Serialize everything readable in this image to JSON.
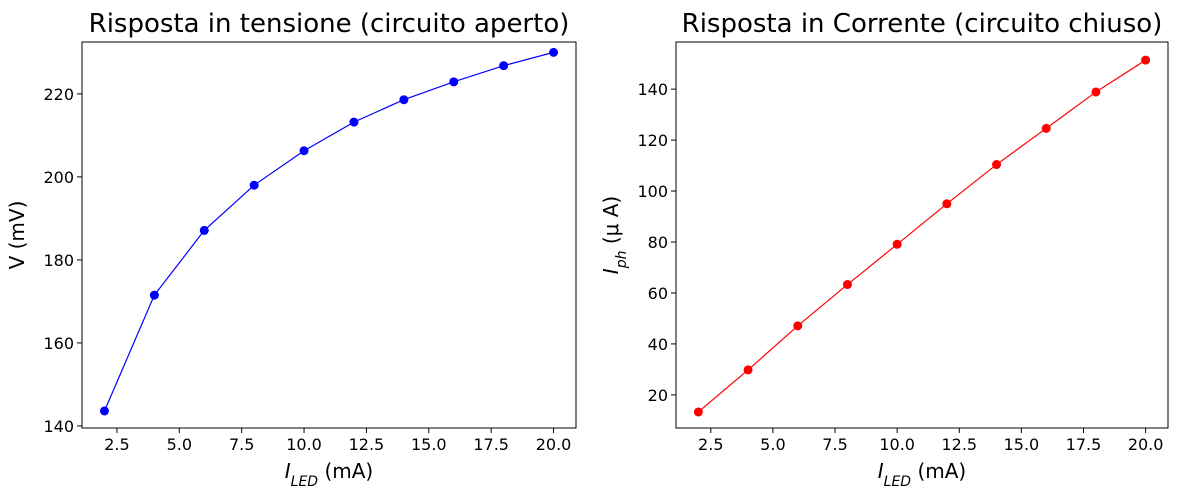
{
  "chart_data": [
    {
      "type": "line",
      "title": "Risposta in tensione (circuito aperto)",
      "xlabel": {
        "base": "I",
        "sub": "LED",
        "unit": " (mA)"
      },
      "ylabel": {
        "base": "V (mV)"
      },
      "xlim": [
        1.1,
        20.9
      ],
      "ylim": [
        139.5,
        232.5
      ],
      "xticks": [
        2.5,
        5.0,
        7.5,
        10.0,
        12.5,
        15.0,
        17.5,
        20.0
      ],
      "yticks": [
        140,
        160,
        180,
        200,
        220
      ],
      "grid": false,
      "series": [
        {
          "color": "#0000ff",
          "marker": "circle",
          "x": [
            2,
            4,
            6,
            8,
            10,
            12,
            14,
            16,
            18,
            20
          ],
          "y": [
            143.6,
            171.5,
            187.1,
            198.0,
            206.3,
            213.2,
            218.6,
            222.9,
            226.8,
            230.0
          ]
        }
      ]
    },
    {
      "type": "line",
      "title": "Risposta in Corrente (circuito chiuso)",
      "xlabel": {
        "base": "I",
        "sub": "LED",
        "unit": " (mA)"
      },
      "ylabel": {
        "base": "I",
        "sub": "ph",
        "unit": " (μ A)"
      },
      "xlim": [
        1.1,
        20.9
      ],
      "ylim": [
        7.0,
        158.5
      ],
      "xticks": [
        2.5,
        5.0,
        7.5,
        10.0,
        12.5,
        15.0,
        17.5,
        20.0
      ],
      "yticks": [
        20,
        40,
        60,
        80,
        100,
        120,
        140
      ],
      "grid": false,
      "series": [
        {
          "color": "#ff0000",
          "marker": "circle",
          "x": [
            2,
            4,
            6,
            8,
            10,
            12,
            14,
            16,
            18,
            20
          ],
          "y": [
            13.3,
            29.8,
            47.1,
            63.3,
            79.1,
            95.0,
            110.4,
            124.6,
            138.9,
            151.4
          ]
        }
      ]
    }
  ]
}
